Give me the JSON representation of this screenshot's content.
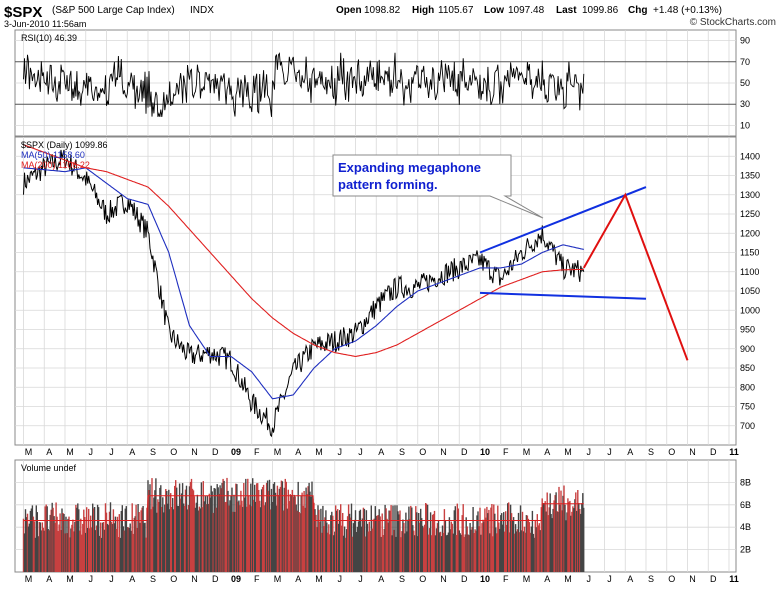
{
  "header": {
    "symbol": "$SPX",
    "name": "(S&P 500 Large Cap Index)",
    "exchange": "INDX",
    "datetime": "3-Jun-2010 11:56am",
    "open_label": "Open",
    "open": "1098.82",
    "high_label": "High",
    "high": "1105.67",
    "low_label": "Low",
    "low": "1097.48",
    "last_label": "Last",
    "last": "1099.86",
    "chg_label": "Chg",
    "chg": "+1.48 (+0.13%)",
    "watermark": "© StockCharts.com"
  },
  "annotation": {
    "line1": "Expanding megaphone",
    "line2": "pattern forming."
  },
  "month_labels": [
    "M",
    "A",
    "M",
    "J",
    "J",
    "A",
    "S",
    "O",
    "N",
    "D",
    "09",
    "F",
    "M",
    "A",
    "M",
    "J",
    "J",
    "A",
    "S",
    "O",
    "N",
    "D",
    "10",
    "F",
    "M",
    "A",
    "M",
    "J",
    "J",
    "A",
    "S",
    "O",
    "N",
    "D",
    "11"
  ],
  "colors": {
    "price": "#000000",
    "ma50": "#1f2fbf",
    "ma200": "#e02020",
    "trendline": "#1030e0",
    "projection": "#e01010",
    "grid": "#d8d8d8",
    "annotation_text": "#1020d0",
    "volume_bar": "#444444",
    "volume_bar_up": "#c84040"
  },
  "chart_data": [
    {
      "type": "line",
      "panel": "rsi",
      "legend": "RSI(10) 46.39",
      "ylim": [
        0,
        100
      ],
      "yticks": [
        10,
        30,
        50,
        70,
        90
      ],
      "overbought": 70,
      "oversold": 30,
      "last": 46.39
    },
    {
      "type": "line",
      "panel": "price",
      "title": "$SPX (Daily) 1099.86",
      "ylim": [
        650,
        1450
      ],
      "yticks": [
        700,
        750,
        800,
        850,
        900,
        950,
        1000,
        1050,
        1100,
        1150,
        1200,
        1250,
        1300,
        1350,
        1400
      ],
      "x": [
        "2008-03",
        "2008-04",
        "2008-05",
        "2008-06",
        "2008-07",
        "2008-08",
        "2008-09",
        "2008-10",
        "2008-11",
        "2008-12",
        "2009-01",
        "2009-02",
        "2009-03",
        "2009-04",
        "2009-05",
        "2009-06",
        "2009-07",
        "2009-08",
        "2009-09",
        "2009-10",
        "2009-11",
        "2009-12",
        "2010-01",
        "2010-02",
        "2010-03",
        "2010-04",
        "2010-05",
        "2010-06"
      ],
      "series": [
        {
          "name": "$SPX (Daily) 1099.86",
          "values": [
            1330,
            1370,
            1395,
            1340,
            1250,
            1285,
            1200,
            940,
            880,
            890,
            870,
            760,
            700,
            840,
            905,
            920,
            940,
            1010,
            1060,
            1060,
            1090,
            1110,
            1130,
            1080,
            1150,
            1200,
            1110,
            1100
          ]
        },
        {
          "name": "MA(50) 1158.60",
          "values": [
            1370,
            1365,
            1360,
            1370,
            1330,
            1290,
            1275,
            1150,
            960,
            880,
            880,
            840,
            770,
            780,
            850,
            900,
            920,
            960,
            1010,
            1050,
            1070,
            1090,
            1110,
            1110,
            1120,
            1150,
            1170,
            1158
          ]
        },
        {
          "name": "MA(200) 1106.22",
          "values": [
            1430,
            1410,
            1390,
            1370,
            1360,
            1340,
            1320,
            1270,
            1210,
            1150,
            1090,
            1030,
            980,
            940,
            910,
            890,
            880,
            890,
            910,
            940,
            970,
            1000,
            1030,
            1060,
            1080,
            1100,
            1105,
            1106
          ]
        }
      ],
      "trendlines": [
        {
          "name": "upper",
          "x": [
            "2010-01",
            "2010-09"
          ],
          "values": [
            1150,
            1320
          ]
        },
        {
          "name": "lower",
          "x": [
            "2010-01",
            "2010-09"
          ],
          "values": [
            1045,
            1030
          ]
        }
      ],
      "projection": {
        "x": [
          "2010-06",
          "2010-08",
          "2010-11"
        ],
        "values": [
          1110,
          1300,
          870
        ]
      }
    },
    {
      "type": "bar",
      "panel": "volume",
      "legend": "Volume undef",
      "yticks": [
        "2B",
        "4B",
        "6B",
        "8B"
      ],
      "tick_values": [
        2,
        4,
        6,
        8
      ],
      "unit": "billion shares"
    }
  ]
}
